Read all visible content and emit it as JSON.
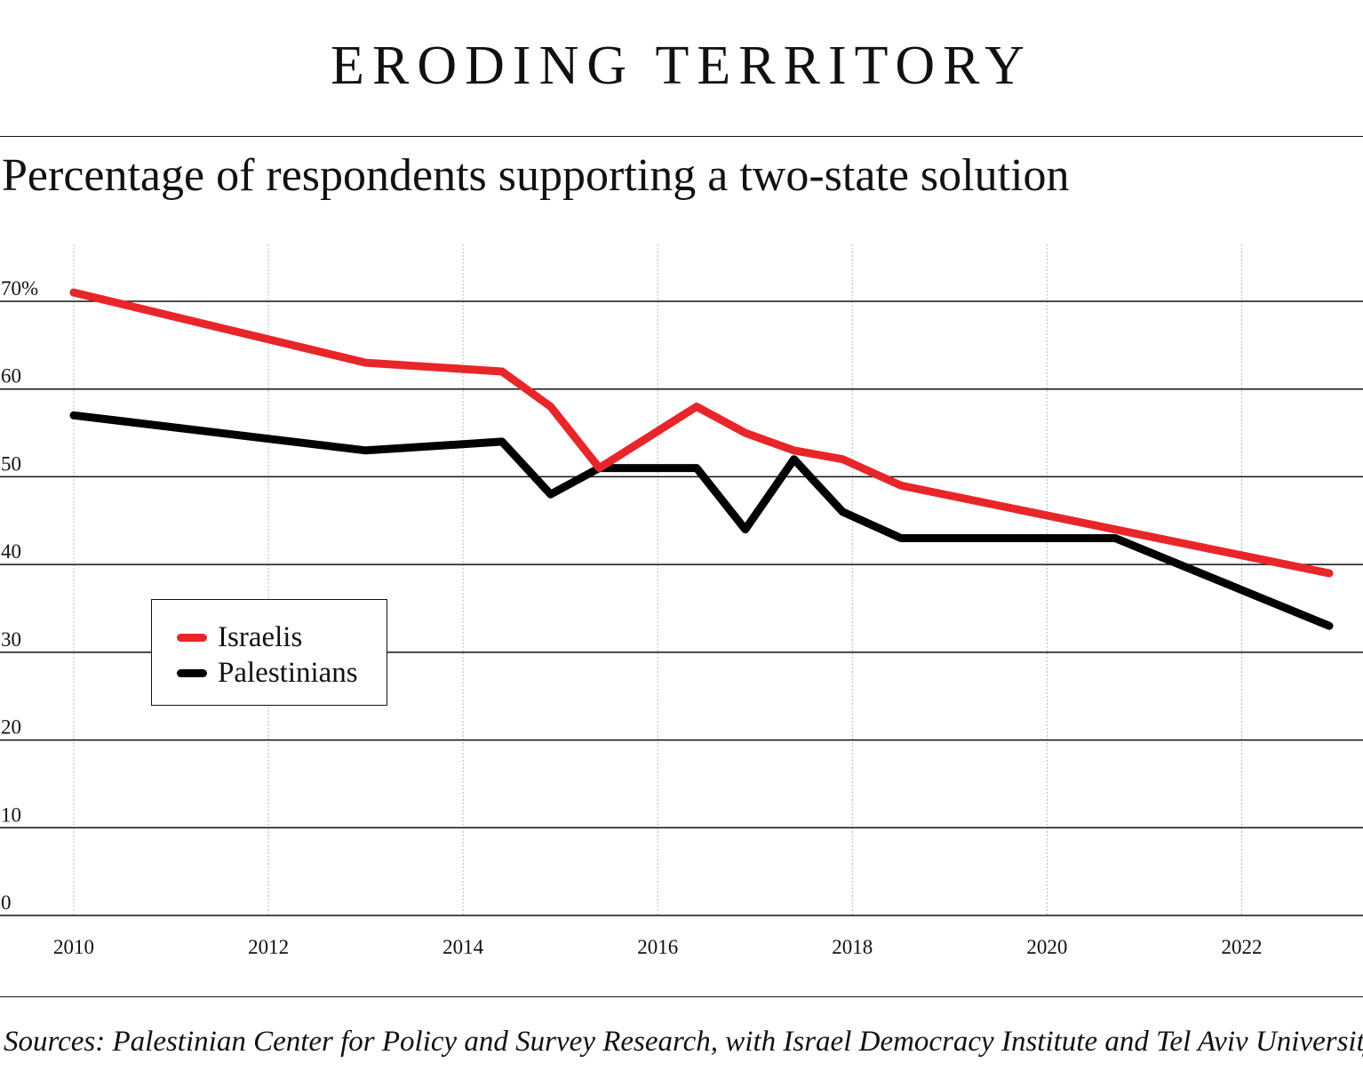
{
  "header": {
    "title": "ERODING TERRITORY",
    "subtitle": "Percentage of respondents supporting a two-state solution"
  },
  "footer": {
    "source": "Sources: Palestinian Center for Policy and Survey Research, with Israel Democracy Institute and Tel Aviv University."
  },
  "chart_data": {
    "type": "line",
    "title": "ERODING TERRITORY",
    "subtitle": "Percentage of respondents supporting a two-state solution",
    "xlim": [
      2010,
      2023
    ],
    "ylim": [
      0,
      70
    ],
    "x_ticks": [
      2010,
      2012,
      2014,
      2016,
      2018,
      2020,
      2022
    ],
    "x_tick_labels": [
      "2010",
      "2012",
      "2014",
      "2016",
      "2018",
      "2020",
      "2022"
    ],
    "y_ticks": [
      0,
      10,
      20,
      30,
      40,
      50,
      60,
      70
    ],
    "y_tick_labels": [
      "0",
      "10",
      "20",
      "30",
      "40",
      "50",
      "60",
      "70%"
    ],
    "grid": true,
    "legend": {
      "placement": "middle-left"
    },
    "series": [
      {
        "name": "Israelis",
        "color": "#e8262a",
        "points": [
          [
            2010.0,
            71
          ],
          [
            2013.0,
            63
          ],
          [
            2014.4,
            62
          ],
          [
            2014.9,
            58
          ],
          [
            2015.4,
            51
          ],
          [
            2016.4,
            58
          ],
          [
            2016.9,
            55
          ],
          [
            2017.4,
            53
          ],
          [
            2017.9,
            52
          ],
          [
            2018.5,
            49
          ],
          [
            2020.7,
            44
          ],
          [
            2022.9,
            39
          ]
        ]
      },
      {
        "name": "Palestinians",
        "color": "#000000",
        "points": [
          [
            2010.0,
            57
          ],
          [
            2013.0,
            53
          ],
          [
            2014.4,
            54
          ],
          [
            2014.9,
            48
          ],
          [
            2015.4,
            51
          ],
          [
            2016.4,
            51
          ],
          [
            2016.9,
            44
          ],
          [
            2017.4,
            52
          ],
          [
            2017.9,
            46
          ],
          [
            2018.5,
            43
          ],
          [
            2020.7,
            43
          ],
          [
            2022.9,
            33
          ]
        ]
      }
    ]
  }
}
